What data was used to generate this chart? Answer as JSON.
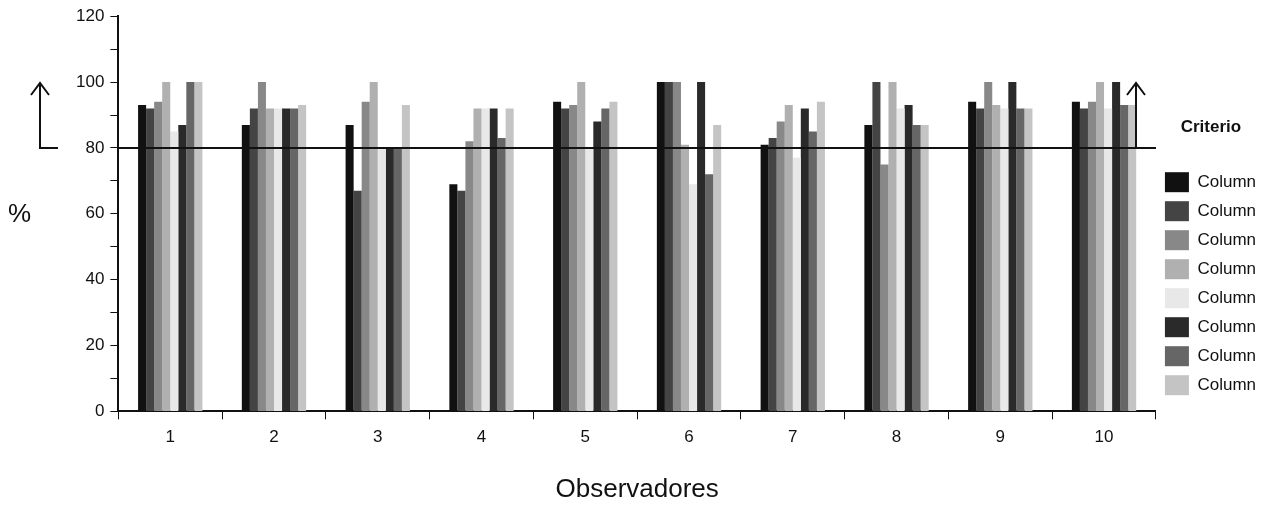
{
  "chart_data": {
    "type": "bar",
    "xlabel": "Observadores",
    "ylabel": "%",
    "legend_title": "Criterio",
    "legend": "right",
    "grid": false,
    "categories": [
      "1",
      "2",
      "3",
      "4",
      "5",
      "6",
      "7",
      "8",
      "9",
      "10"
    ],
    "ylim": [
      0,
      120
    ],
    "yticks": [
      0,
      {
        "value": 10,
        "label": null
      },
      20,
      {
        "value": 30,
        "label": null
      },
      40,
      {
        "value": 50,
        "label": null
      },
      60,
      {
        "value": 70,
        "label": null
      },
      80,
      {
        "value": 90,
        "label": null
      },
      100,
      {
        "value": 110,
        "label": null
      },
      120
    ],
    "series": [
      {
        "name": "Column",
        "color": "#111111",
        "values": [
          93,
          87,
          87,
          69,
          94,
          100,
          81,
          87,
          94,
          94
        ]
      },
      {
        "name": "Column",
        "color": "#444444",
        "values": [
          92,
          92,
          67,
          67,
          92,
          100,
          83,
          100,
          92,
          92
        ]
      },
      {
        "name": "Column",
        "color": "#888888",
        "values": [
          94,
          100,
          94,
          82,
          93,
          100,
          88,
          75,
          100,
          94
        ]
      },
      {
        "name": "Column",
        "color": "#b0b0b0",
        "values": [
          100,
          92,
          100,
          92,
          100,
          81,
          93,
          100,
          93,
          100
        ]
      },
      {
        "name": "Column",
        "color": "#e8e8e8",
        "values": [
          85,
          92,
          80,
          92,
          80,
          69,
          77,
          92,
          92,
          92
        ]
      },
      {
        "name": "Column",
        "color": "#2a2a2a",
        "values": [
          87,
          92,
          80,
          92,
          88,
          100,
          92,
          93,
          100,
          100
        ]
      },
      {
        "name": "Column",
        "color": "#666666",
        "values": [
          100,
          92,
          80,
          83,
          92,
          72,
          85,
          87,
          92,
          93
        ]
      },
      {
        "name": "Column",
        "color": "#c4c4c4",
        "values": [
          100,
          93,
          93,
          92,
          94,
          87,
          94,
          87,
          92,
          93
        ]
      }
    ],
    "ref_lines": [
      {
        "axis": "y",
        "value": 80,
        "color": "#111111"
      }
    ]
  }
}
